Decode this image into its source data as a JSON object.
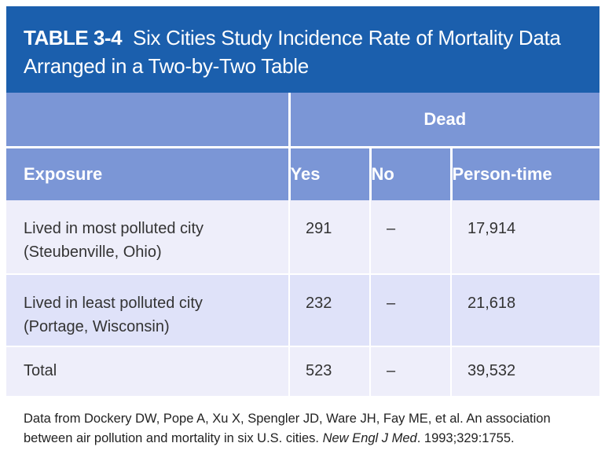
{
  "title": {
    "table_label": "TABLE 3-4",
    "line1": "Six Cities Study Incidence Rate of Mortality Data",
    "line2": "Arranged in a Two-by-Two Table"
  },
  "header": {
    "group": "Dead",
    "columns": [
      "Exposure",
      "Yes",
      "No",
      "Person-time"
    ]
  },
  "rows": [
    {
      "exposure": [
        "Lived in most polluted city",
        "(Steubenville, Ohio)"
      ],
      "yes": "291",
      "no": "–",
      "person_time": "17,914"
    },
    {
      "exposure": [
        "Lived in least polluted city",
        "(Portage, Wisconsin)"
      ],
      "yes": "232",
      "no": "–",
      "person_time": "21,618"
    },
    {
      "exposure": [
        "Total"
      ],
      "yes": "523",
      "no": "–",
      "person_time": "39,532"
    }
  ],
  "footnote": {
    "text_before": "Data from Dockery DW, Pope A, Xu X, Spengler JD, Ware JH, Fay ME, et al. An association between air pollution and mortality in six U.S. cities. ",
    "journal": "New Engl J Med",
    "text_after": ". 1993;329:1755."
  }
}
